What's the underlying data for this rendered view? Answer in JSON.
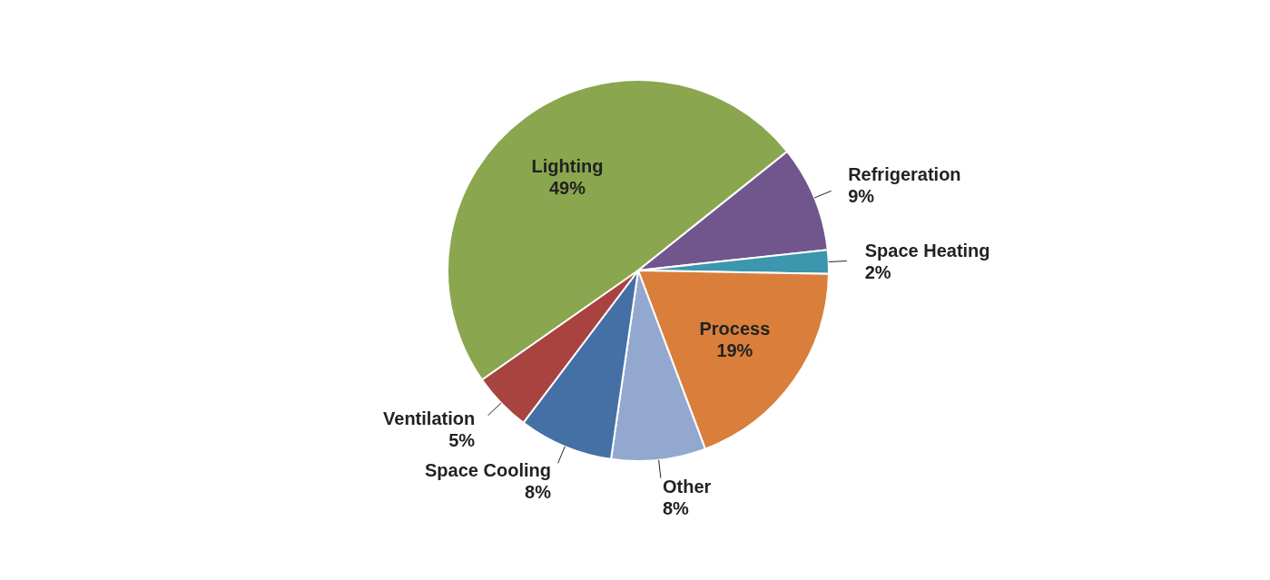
{
  "chart_data": {
    "type": "pie",
    "categories": [
      "Lighting",
      "Refrigeration",
      "Space Heating",
      "Process",
      "Other",
      "Space Cooling",
      "Ventilation"
    ],
    "values": [
      49,
      9,
      2,
      19,
      8,
      8,
      5
    ],
    "value_labels": [
      "49%",
      "9%",
      "2%",
      "19%",
      "8%",
      "8%",
      "5%"
    ],
    "colors": [
      "#8aa64e",
      "#71568d",
      "#3c96ae",
      "#d97f3b",
      "#92a8cf",
      "#4470a5",
      "#a84340"
    ],
    "legend": false
  }
}
